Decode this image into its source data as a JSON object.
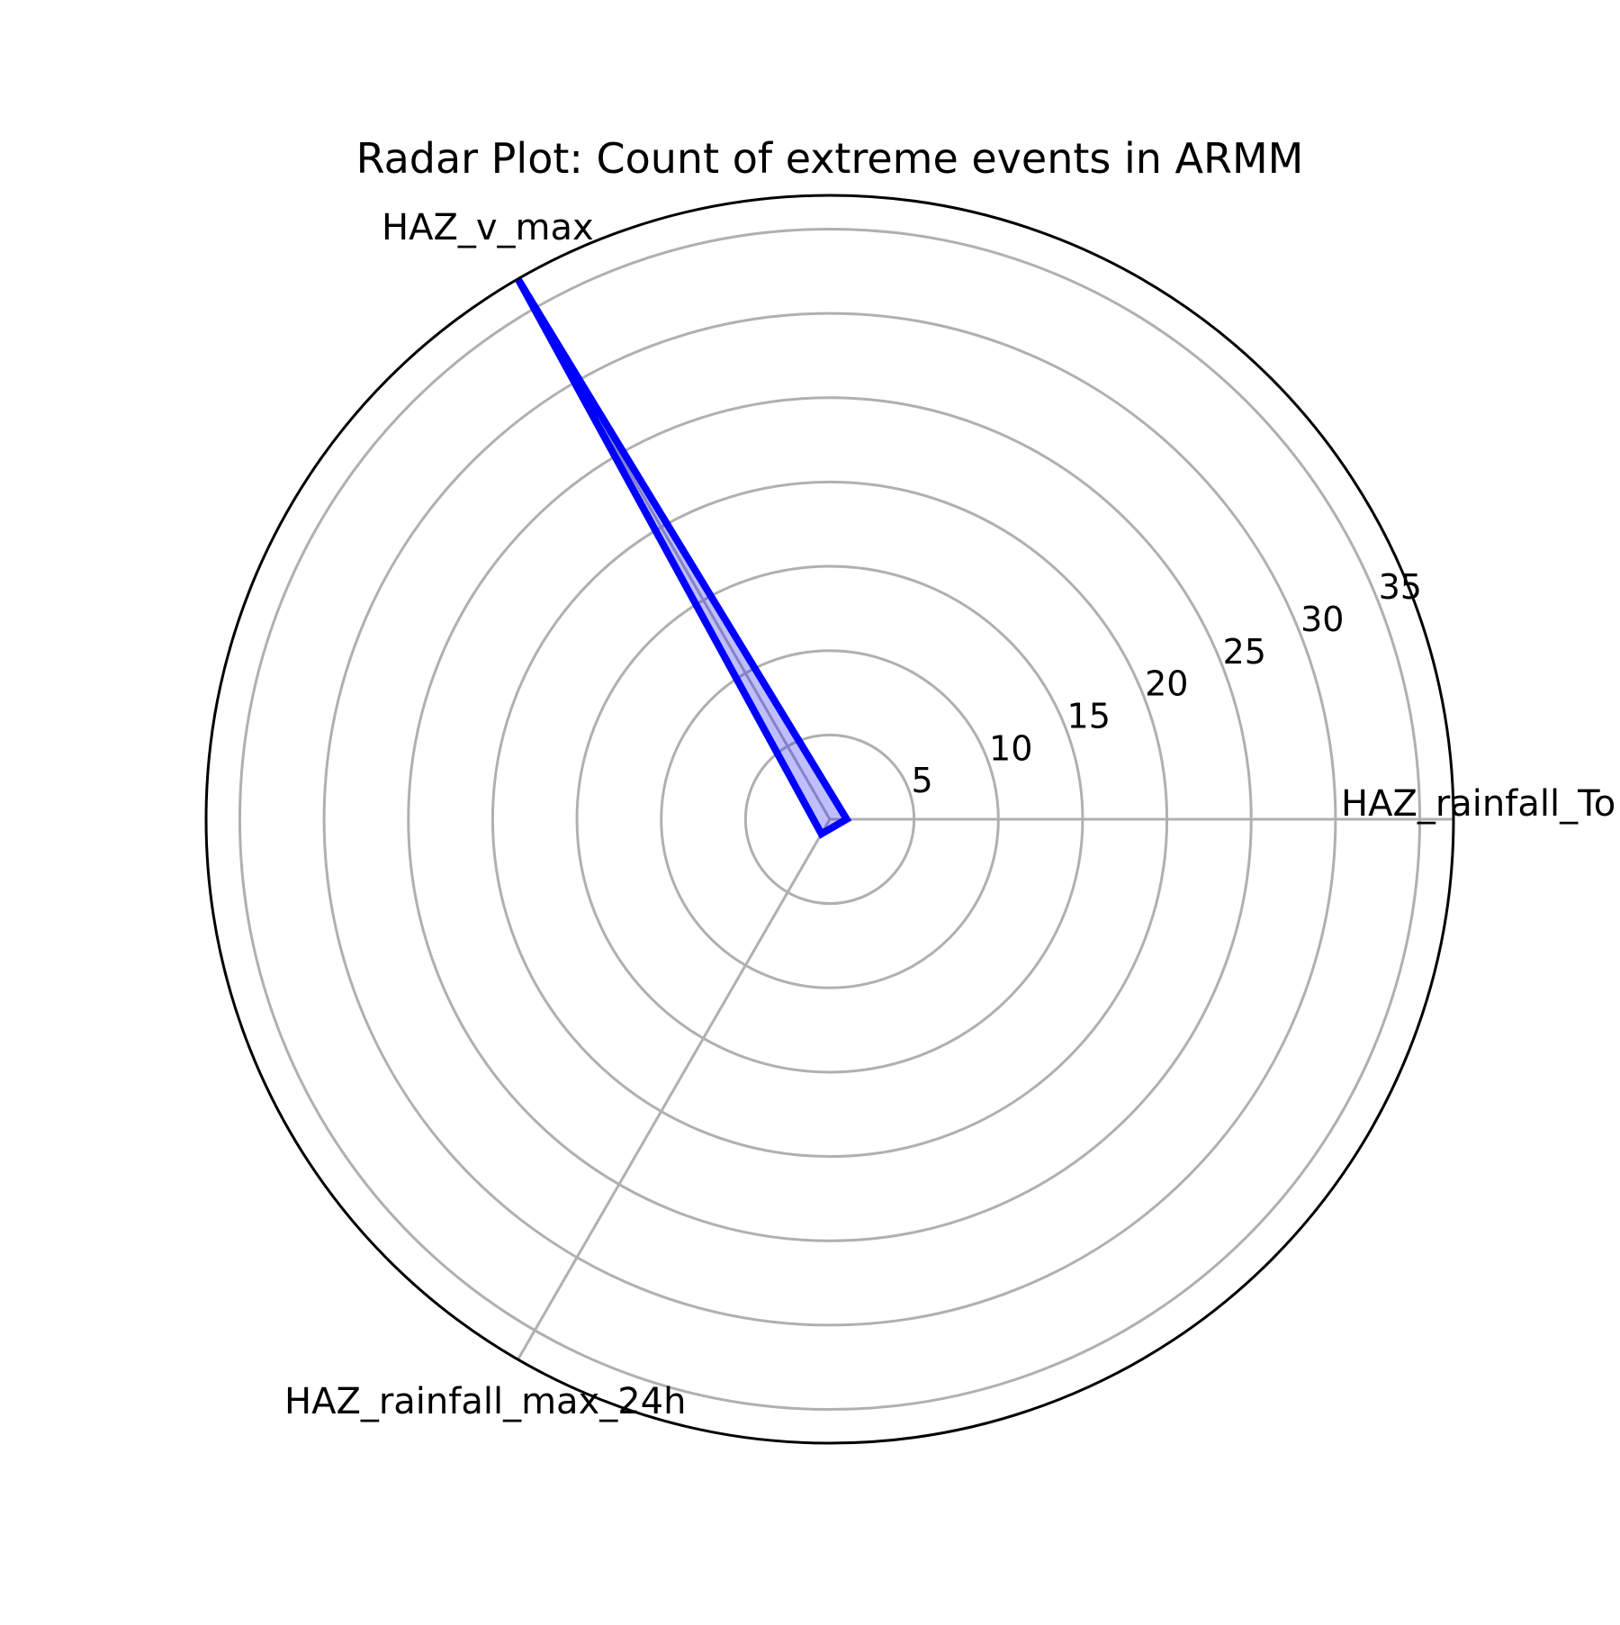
{
  "chart_data": {
    "type": "radar",
    "title": "Radar Plot: Count of extreme events in ARMM",
    "categories": [
      "HAZ_rainfall_To",
      "HAZ_v_max",
      "HAZ_rainfall_max_24h"
    ],
    "series": [
      {
        "values": [
          1,
          37,
          1
        ]
      }
    ],
    "rlim": [
      0,
      37
    ],
    "rticks": [
      5,
      10,
      15,
      20,
      25,
      30,
      35
    ],
    "grid": true,
    "colors": {
      "series_line": "#0000ff",
      "series_fill": "#0000ff",
      "grid": "#b0b0b0",
      "frame": "#000000"
    }
  }
}
